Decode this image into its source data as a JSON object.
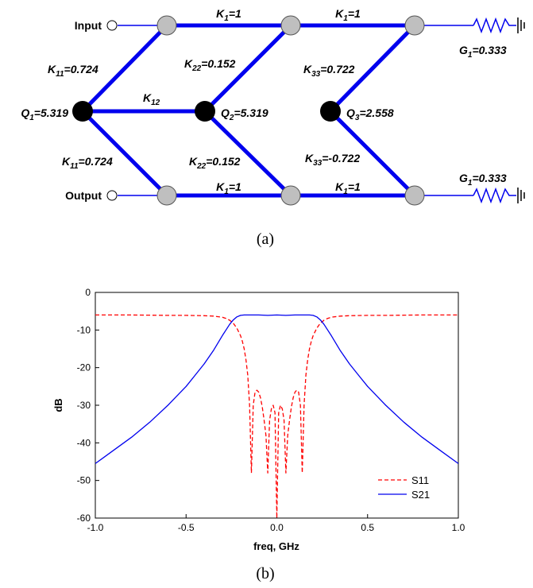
{
  "diagram": {
    "ports": {
      "input": "Input",
      "output": "Output"
    },
    "couplings": {
      "k1_top_left": "K1=1",
      "k1_top_right": "K1=1",
      "k1_bot_left": "K1=1",
      "k1_bot_right": "K1=1",
      "k11_top": "K11=0.724",
      "k11_bot": "K11=0.724",
      "k12": "K12",
      "k22_top": "K22=0.152",
      "k22_bot": "K22=0.152",
      "k33_top": "K33=0.722",
      "k33_bot": "K33=-0.722"
    },
    "resonators": {
      "q1": "Q1=5.319",
      "q2": "Q2=5.319",
      "q3": "Q3=2.558"
    },
    "loads": {
      "g1_top": "G1=0.333",
      "g1_bot": "G1=0.333"
    },
    "caption": "(a)",
    "colors": {
      "coupling_line": "#0000ee",
      "resonator": "#000000",
      "node": "#bfbfbf"
    }
  },
  "chart_data": {
    "type": "line",
    "xlabel": "freq, GHz",
    "ylabel": "dB",
    "xlim": [
      -1.0,
      1.0
    ],
    "ylim": [
      -60,
      0
    ],
    "xticks": [
      "-1.0",
      "-0.5",
      "0.0",
      "0.5",
      "1.0"
    ],
    "yticks": [
      "0",
      "-10",
      "-20",
      "-30",
      "-40",
      "-50",
      "-60"
    ],
    "legend_position": "bottom-right",
    "grid": false,
    "caption": "(b)",
    "series": [
      {
        "name": "S11",
        "style": "dashed",
        "color": "#ff0000",
        "x": [
          -1.0,
          -0.8,
          -0.6,
          -0.5,
          -0.4,
          -0.35,
          -0.3,
          -0.28,
          -0.26,
          -0.24,
          -0.22,
          -0.2,
          -0.19,
          -0.18,
          -0.17,
          -0.16,
          -0.15,
          -0.14,
          -0.13,
          -0.12,
          -0.11,
          -0.1,
          -0.09,
          -0.08,
          -0.07,
          -0.06,
          -0.05,
          -0.04,
          -0.03,
          -0.02,
          -0.01,
          0.0,
          0.01,
          0.02,
          0.03,
          0.04,
          0.05,
          0.06,
          0.07,
          0.08,
          0.09,
          0.1,
          0.11,
          0.12,
          0.13,
          0.14,
          0.15,
          0.16,
          0.17,
          0.18,
          0.19,
          0.2,
          0.22,
          0.24,
          0.26,
          0.28,
          0.3,
          0.35,
          0.4,
          0.5,
          0.6,
          0.8,
          1.0
        ],
        "y": [
          -6.0,
          -6.0,
          -6.1,
          -6.1,
          -6.2,
          -6.3,
          -6.6,
          -6.9,
          -7.4,
          -8.2,
          -9.5,
          -11.5,
          -13.0,
          -15.0,
          -18.0,
          -22.0,
          -30.0,
          -48.0,
          -30.0,
          -26.5,
          -26.0,
          -26.5,
          -28.0,
          -30.5,
          -34.0,
          -38.0,
          -48.0,
          -34.0,
          -31.0,
          -30.0,
          -32.0,
          -60.0,
          -32.0,
          -30.0,
          -31.0,
          -34.0,
          -48.0,
          -38.0,
          -34.0,
          -30.5,
          -28.0,
          -26.5,
          -26.0,
          -26.5,
          -30.0,
          -48.0,
          -30.0,
          -22.0,
          -18.0,
          -15.0,
          -13.0,
          -11.5,
          -9.5,
          -8.2,
          -7.4,
          -6.9,
          -6.6,
          -6.3,
          -6.2,
          -6.1,
          -6.1,
          -6.0,
          -6.0
        ]
      },
      {
        "name": "S21",
        "style": "solid",
        "color": "#0000ee",
        "x": [
          -1.0,
          -0.9,
          -0.8,
          -0.7,
          -0.6,
          -0.5,
          -0.45,
          -0.4,
          -0.35,
          -0.3,
          -0.28,
          -0.26,
          -0.24,
          -0.22,
          -0.2,
          -0.18,
          -0.16,
          -0.14,
          -0.1,
          -0.05,
          0.0,
          0.05,
          0.1,
          0.14,
          0.16,
          0.18,
          0.2,
          0.22,
          0.24,
          0.26,
          0.28,
          0.3,
          0.35,
          0.4,
          0.45,
          0.5,
          0.6,
          0.7,
          0.8,
          0.9,
          1.0
        ],
        "y": [
          -45.5,
          -42.0,
          -38.5,
          -34.5,
          -30.0,
          -25.0,
          -22.0,
          -19.0,
          -15.5,
          -11.5,
          -10.0,
          -8.5,
          -7.3,
          -6.5,
          -6.1,
          -6.0,
          -6.0,
          -6.0,
          -6.0,
          -6.1,
          -6.0,
          -6.1,
          -6.0,
          -6.0,
          -6.0,
          -6.0,
          -6.1,
          -6.5,
          -7.3,
          -8.5,
          -10.0,
          -11.5,
          -15.5,
          -19.0,
          -22.0,
          -25.0,
          -30.0,
          -34.5,
          -38.5,
          -42.0,
          -45.5
        ]
      }
    ]
  }
}
